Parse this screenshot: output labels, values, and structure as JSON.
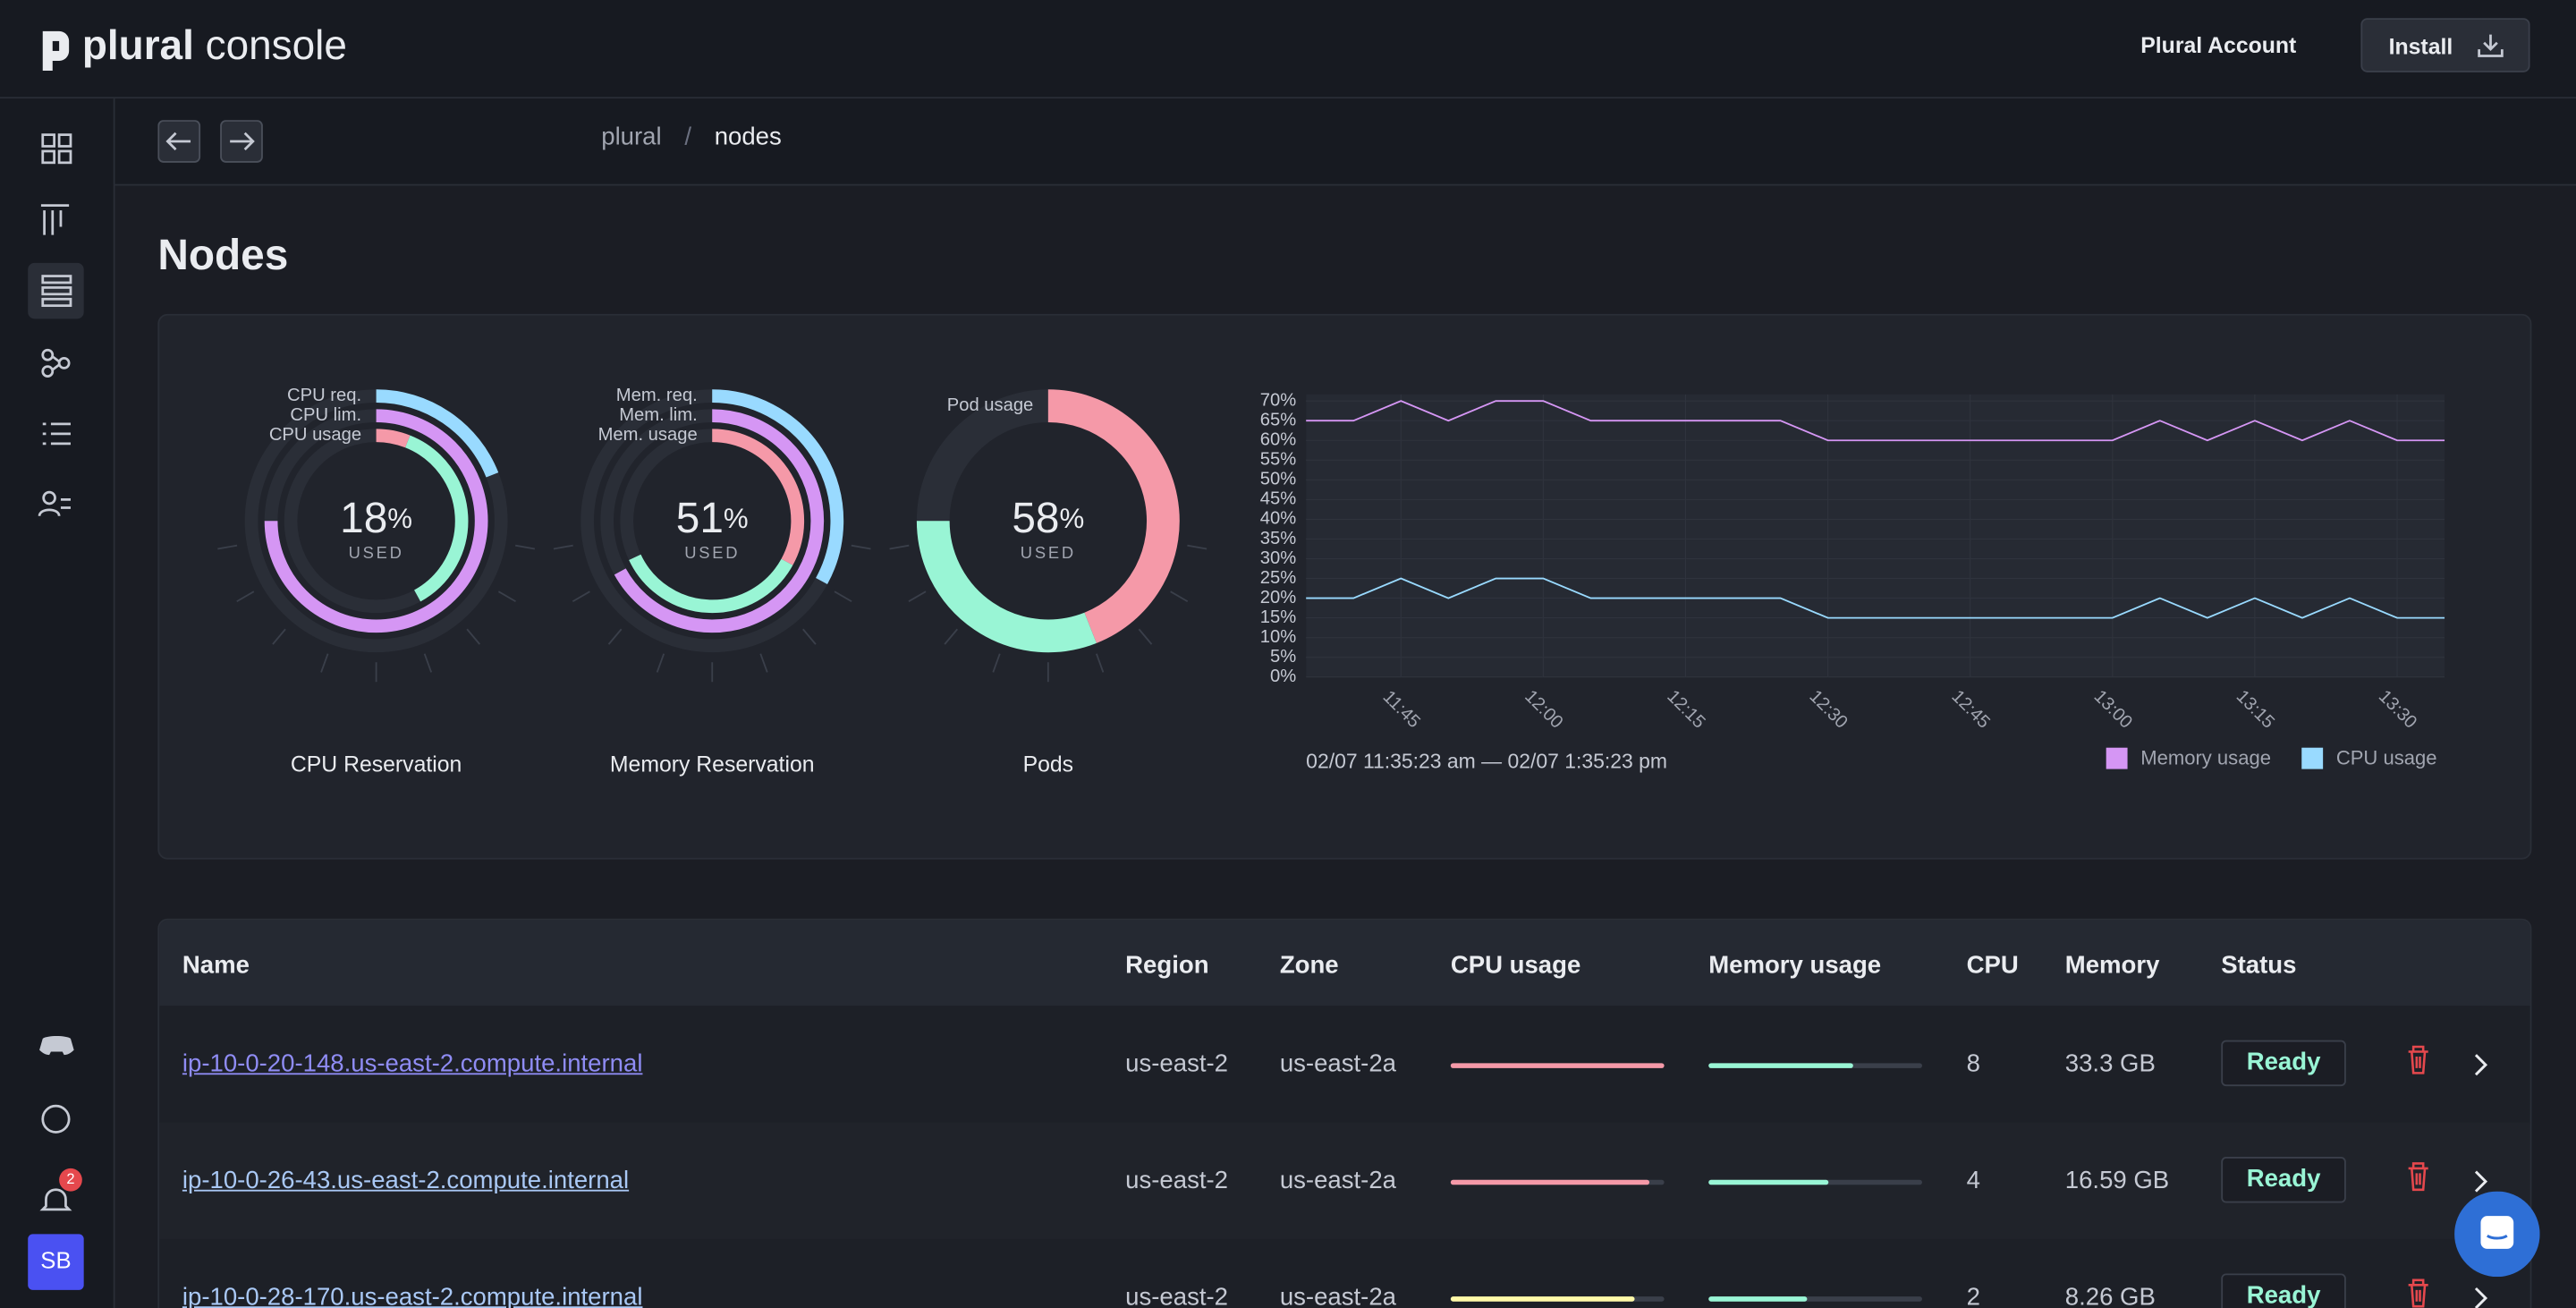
{
  "header": {
    "logo": "plural",
    "logo_suffix": "console",
    "account": "Plural Account",
    "install": "Install"
  },
  "sidebar": {
    "notifications": 2,
    "avatar": "SB"
  },
  "breadcrumbs": [
    "plural",
    "nodes"
  ],
  "breadcrumb_separator": "/",
  "title": "Nodes",
  "gauges": [
    {
      "type": "radial",
      "title": "CPU Reservation",
      "value": 18,
      "unit": "%",
      "caption": "USED",
      "lim": [
        0,
        100
      ],
      "rings": [
        {
          "name": "CPU req.",
          "segments": [
            {
              "value": 19,
              "color": "#99daff"
            }
          ]
        },
        {
          "name": "CPU lim.",
          "segments": [
            {
              "value": 75,
              "color": "#d596f4"
            }
          ]
        },
        {
          "name": "CPU usage",
          "segments": [
            {
              "value": 6,
              "color": "#f599a8"
            },
            {
              "value": 36,
              "color": "#99f5d5"
            }
          ]
        }
      ]
    },
    {
      "type": "radial",
      "title": "Memory Reservation",
      "value": 51,
      "unit": "%",
      "caption": "USED",
      "lim": [
        0,
        100
      ],
      "rings": [
        {
          "name": "Mem. req.",
          "segments": [
            {
              "value": 33,
              "color": "#99daff"
            }
          ]
        },
        {
          "name": "Mem. lim.",
          "segments": [
            {
              "value": 67,
              "color": "#d596f4"
            }
          ]
        },
        {
          "name": "Mem. usage",
          "segments": [
            {
              "value": 33,
              "color": "#f599a8"
            },
            {
              "value": 35,
              "color": "#99f5d5"
            }
          ]
        }
      ]
    },
    {
      "type": "radial",
      "title": "Pods",
      "value": 58,
      "unit": "%",
      "caption": "USED",
      "lim": [
        0,
        100
      ],
      "rings": [
        {
          "name": "Pod usage",
          "segments": [
            {
              "value": 44,
              "color": "#f599a8"
            },
            {
              "value": 31,
              "color": "#99f5d5"
            }
          ]
        }
      ]
    }
  ],
  "chart": {
    "type": "line",
    "x": [
      "11:35",
      "11:40",
      "11:45",
      "11:50",
      "11:55",
      "12:00",
      "12:05",
      "12:10",
      "12:15",
      "12:20",
      "12:25",
      "12:30",
      "12:35",
      "12:40",
      "12:45",
      "12:50",
      "12:55",
      "13:00",
      "13:05",
      "13:10",
      "13:15",
      "13:20",
      "13:25",
      "13:30",
      "13:35"
    ],
    "series": [
      {
        "name": "Memory usage",
        "color": "#d596f4",
        "values": [
          65,
          65,
          70,
          65,
          70,
          70,
          65,
          65,
          65,
          65,
          65,
          60,
          60,
          60,
          60,
          60,
          60,
          60,
          65,
          60,
          65,
          60,
          65,
          60,
          60
        ]
      },
      {
        "name": "CPU usage",
        "color": "#99daff",
        "values": [
          20,
          20,
          25,
          20,
          25,
          25,
          20,
          20,
          20,
          20,
          20,
          15,
          15,
          15,
          15,
          15,
          15,
          15,
          20,
          15,
          20,
          15,
          20,
          15,
          15
        ]
      }
    ],
    "xlim": [
      "11:35",
      "13:35"
    ],
    "xticks": [
      "11:45",
      "12:00",
      "12:15",
      "12:30",
      "12:45",
      "13:00",
      "13:15",
      "13:30"
    ],
    "ylim": [
      0,
      70
    ],
    "yticks": [
      {
        "value": 0,
        "label": "0%"
      },
      {
        "value": 5,
        "label": "5%"
      },
      {
        "value": 10,
        "label": "10%"
      },
      {
        "value": 15,
        "label": "15%"
      },
      {
        "value": 20,
        "label": "20%"
      },
      {
        "value": 25,
        "label": "25%"
      },
      {
        "value": 30,
        "label": "30%"
      },
      {
        "value": 35,
        "label": "35%"
      },
      {
        "value": 40,
        "label": "40%"
      },
      {
        "value": 45,
        "label": "45%"
      },
      {
        "value": 50,
        "label": "50%"
      },
      {
        "value": 55,
        "label": "55%"
      },
      {
        "value": 60,
        "label": "60%"
      },
      {
        "value": 65,
        "label": "65%"
      },
      {
        "value": 70,
        "label": "70%"
      }
    ],
    "grid": true,
    "range_label": "02/07 11:35:23 am — 02/07 1:35:23 pm"
  },
  "table": {
    "columns": [
      "Name",
      "Region",
      "Zone",
      "CPU usage",
      "Memory usage",
      "CPU",
      "Memory",
      "Status"
    ],
    "usage_lim": [
      0,
      100
    ],
    "rows": [
      {
        "name": "ip-10-0-20-148.us-east-2.compute.internal",
        "region": "us-east-2",
        "zone": "us-east-2a",
        "cpu_usage": 100,
        "cpu_usage_color": "#f599a8",
        "memory_usage": 68,
        "memory_usage_color": "#99f5d5",
        "cpu": 8,
        "memory": "33.3 GB",
        "status": "Ready"
      },
      {
        "name": "ip-10-0-26-43.us-east-2.compute.internal",
        "region": "us-east-2",
        "zone": "us-east-2a",
        "cpu_usage": 93,
        "cpu_usage_color": "#f599a8",
        "memory_usage": 56,
        "memory_usage_color": "#99f5d5",
        "cpu": 4,
        "memory": "16.59 GB",
        "status": "Ready"
      },
      {
        "name": "ip-10-0-28-170.us-east-2.compute.internal",
        "region": "us-east-2",
        "zone": "us-east-2a",
        "cpu_usage": 86,
        "cpu_usage_color": "#fff9a8",
        "memory_usage": 46,
        "memory_usage_color": "#99f5d5",
        "cpu": 2,
        "memory": "8.26 GB",
        "status": "Ready"
      }
    ]
  }
}
